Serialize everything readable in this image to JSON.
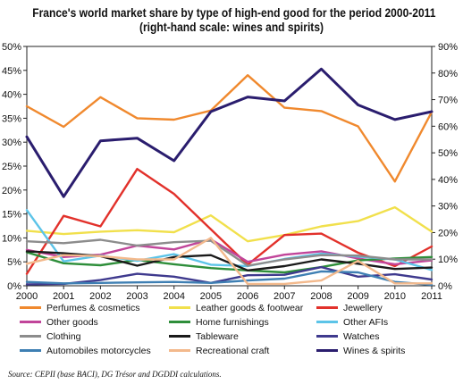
{
  "chart_data": {
    "type": "line",
    "title_line1": "France's world market share by type of high-end good for the period 2000-2011",
    "title_line2": "(right-hand scale: wines and spirits)",
    "x": [
      "2000",
      "2001",
      "2002",
      "2003",
      "2004",
      "2005",
      "2006",
      "2007",
      "2008",
      "2009",
      "2010",
      "2011"
    ],
    "ylim_left": [
      0,
      50
    ],
    "yticks_left": [
      "0%",
      "5%",
      "10%",
      "15%",
      "20%",
      "25%",
      "30%",
      "35%",
      "40%",
      "45%",
      "50%"
    ],
    "ylim_right": [
      0,
      90
    ],
    "yticks_right": [
      "0%",
      "10%",
      "20%",
      "30%",
      "40%",
      "50%",
      "60%",
      "70%",
      "80%",
      "90%"
    ],
    "grid": false,
    "legend_position": "bottom",
    "series": [
      {
        "name": "Perfumes & cosmetics",
        "color": "#f0892e",
        "axis": "left",
        "values": [
          37.5,
          33.2,
          39.4,
          35.0,
          34.7,
          36.6,
          44.0,
          37.2,
          36.5,
          33.3,
          21.8,
          36.3
        ]
      },
      {
        "name": "Leather goods & footwear",
        "color": "#f1e04c",
        "axis": "left",
        "values": [
          11.5,
          10.8,
          11.3,
          11.6,
          11.2,
          14.7,
          9.3,
          10.6,
          12.4,
          13.5,
          16.4,
          11.3
        ]
      },
      {
        "name": "Jewellery",
        "color": "#e2312b",
        "axis": "left",
        "values": [
          2.5,
          14.6,
          12.4,
          24.4,
          19.2,
          11.8,
          4.4,
          10.6,
          10.9,
          6.9,
          4.1,
          8.2
        ]
      },
      {
        "name": "Other goods",
        "color": "#c1459a",
        "axis": "left",
        "values": [
          7.5,
          6.0,
          6.5,
          8.4,
          7.6,
          9.7,
          5.0,
          6.5,
          7.2,
          5.7,
          4.5,
          5.3
        ]
      },
      {
        "name": "Home furnishings",
        "color": "#2e8e3a",
        "axis": "left",
        "values": [
          7.0,
          4.7,
          4.3,
          5.4,
          4.5,
          3.7,
          3.2,
          2.8,
          3.9,
          5.3,
          5.7,
          6.0
        ]
      },
      {
        "name": "Other AFIs",
        "color": "#5cc4e8",
        "axis": "left",
        "values": [
          15.8,
          5.1,
          6.3,
          5.2,
          6.6,
          4.4,
          4.1,
          5.6,
          6.7,
          6.1,
          5.5,
          3.3
        ]
      },
      {
        "name": "Clothing",
        "color": "#8c8c8c",
        "axis": "left",
        "values": [
          9.3,
          8.9,
          9.6,
          8.4,
          9.1,
          9.4,
          4.2,
          5.5,
          6.4,
          6.3,
          5.5,
          5.5
        ]
      },
      {
        "name": "Tableware",
        "color": "#1a1a1a",
        "axis": "left",
        "values": [
          7.2,
          6.8,
          6.2,
          4.2,
          6.0,
          6.4,
          3.2,
          4.1,
          5.5,
          4.6,
          3.5,
          3.8
        ]
      },
      {
        "name": "Watches",
        "color": "#3f3a8e",
        "axis": "left",
        "values": [
          0.3,
          0.4,
          1.2,
          2.5,
          1.9,
          0.6,
          2.2,
          2.3,
          3.9,
          1.9,
          2.4,
          1.3
        ]
      },
      {
        "name": "Automobiles motorcycles",
        "color": "#3e7fb3",
        "axis": "left",
        "values": [
          0.8,
          0.5,
          0.6,
          0.7,
          0.8,
          0.6,
          1.1,
          1.5,
          3.0,
          2.8,
          0.8,
          0.2
        ]
      },
      {
        "name": "Recreational craft",
        "color": "#f3b98c",
        "axis": "left",
        "values": [
          4.6,
          6.4,
          6.2,
          5.5,
          5.5,
          10.0,
          0.4,
          0.4,
          1.1,
          5.2,
          0.5,
          0.5
        ]
      },
      {
        "name": "Wines & spirits",
        "color": "#2a1d6e",
        "axis": "right",
        "width": 3,
        "values": [
          56,
          33.5,
          54.5,
          55.5,
          47,
          65.5,
          71,
          69.5,
          81.5,
          68,
          62.5,
          65.5
        ]
      }
    ]
  },
  "source": "Source: CEPII (base BACI), DG Trésor and DGDDI calculations."
}
